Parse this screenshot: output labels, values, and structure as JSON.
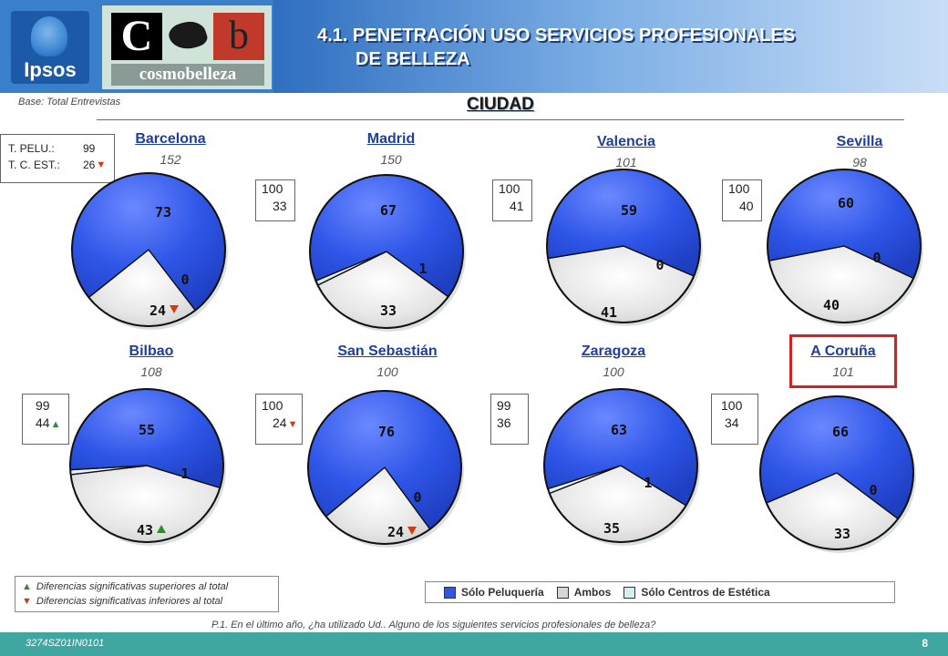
{
  "header": {
    "title_line1": "4.1. PENETRACIÓN USO SERVICIOS PROFESIONALES",
    "title_line2": "DE BELLEZA",
    "logo_ipsos": "Ipsos",
    "logo_brand_c": "C",
    "logo_brand_b": "b",
    "logo_brand_word": "cosmobelleza"
  },
  "base_note": "Base: Total Entrevistas",
  "section_title": "CIUDAD",
  "totals_box": {
    "rows": [
      {
        "label": "T. PELU.:",
        "value": "99"
      },
      {
        "label": "T. C. EST.:",
        "value": "26"
      }
    ]
  },
  "colors": {
    "solo_peluqueria": "#2f56e8",
    "ambos": "#d6d6d6",
    "solo_centros": "#d8ecf4",
    "up": "#2e8b2e",
    "down": "#d23a10",
    "highlight": "#d82020"
  },
  "chart_data": {
    "type": "pie",
    "legend": [
      "Sólo Peluquería",
      "Ambos",
      "Sólo Centros de Estética"
    ],
    "pies": [
      {
        "city": "Barcelona",
        "base": "152",
        "values": [
          73,
          24,
          0
        ],
        "labels": [
          "73",
          "24",
          "0"
        ],
        "ambos_flag": "down",
        "peluqueria_flag": null,
        "box": null
      },
      {
        "city": "Madrid",
        "base": "150",
        "values": [
          67,
          33,
          1
        ],
        "labels": [
          "67",
          "33",
          "1"
        ],
        "ambos_flag": null,
        "peluqueria_flag": null,
        "box": {
          "line1": "100",
          "line2": "33",
          "flag": null
        }
      },
      {
        "city": "Valencia",
        "base": "101",
        "values": [
          59,
          41,
          0
        ],
        "labels": [
          "59",
          "41",
          "0"
        ],
        "ambos_flag": null,
        "peluqueria_flag": null,
        "box": {
          "line1": "100",
          "line2": "41",
          "flag": null
        }
      },
      {
        "city": "Sevilla",
        "base": "98",
        "values": [
          60,
          40,
          0
        ],
        "labels": [
          "60",
          "40",
          "0"
        ],
        "ambos_flag": null,
        "peluqueria_flag": null,
        "box": {
          "line1": "100",
          "line2": "40",
          "flag": null
        }
      },
      {
        "city": "Bilbao",
        "base": "108",
        "values": [
          55,
          43,
          1
        ],
        "labels": [
          "55",
          "43",
          "1"
        ],
        "ambos_flag": "up",
        "peluqueria_flag": null,
        "box": {
          "line1": "99",
          "line2": "44",
          "flag": "up"
        }
      },
      {
        "city": "San Sebastián",
        "base": "100",
        "values": [
          76,
          24,
          0
        ],
        "labels": [
          "76",
          "24",
          "0"
        ],
        "ambos_flag": "down",
        "peluqueria_flag": null,
        "box": {
          "line1": "100",
          "line2": "24",
          "flag": "down"
        }
      },
      {
        "city": "Zaragoza",
        "base": "100",
        "values": [
          63,
          35,
          1
        ],
        "labels": [
          "63",
          "35",
          "1"
        ],
        "ambos_flag": null,
        "peluqueria_flag": null,
        "box": {
          "line1": "99",
          "line2": "36",
          "flag": null
        }
      },
      {
        "city": "A Coruña",
        "base": "101",
        "values": [
          66,
          33,
          0
        ],
        "labels": [
          "66",
          "33",
          "0"
        ],
        "ambos_flag": null,
        "peluqueria_flag": null,
        "box": {
          "line1": "100",
          "line2": "34",
          "flag": null
        },
        "highlighted": true
      }
    ]
  },
  "significance_legend": {
    "up": "Diferencias significativas superiores al total",
    "down": "Diferencias significativas inferiores al total"
  },
  "question": "P.1.    En el último año, ¿ha utilizado Ud.. Alguno de los siguientes servicios profesionales de belleza?",
  "footer": {
    "code": "3274SZ01IN0101",
    "page": "8"
  }
}
